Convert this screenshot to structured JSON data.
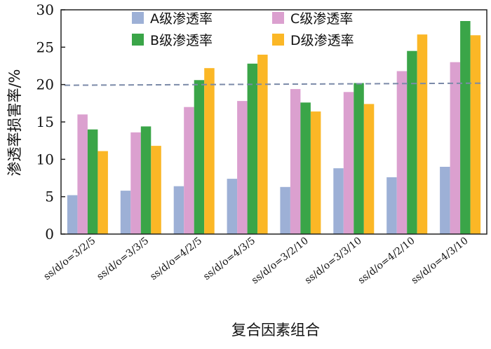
{
  "chart_data": {
    "type": "bar",
    "title": "",
    "xlabel": "复合因素组合",
    "ylabel": "渗透率损害率/%",
    "ylim": [
      0,
      30
    ],
    "yticks": [
      0,
      5,
      10,
      15,
      20,
      25,
      30
    ],
    "grid": false,
    "legend_position": "top",
    "reference_line": 20,
    "categories": [
      "ss/d/o=3/2/5",
      "ss/d/o=3/3/5",
      "ss/d/o=4/2/5",
      "ss/d/o=4/3/5",
      "ss/d/o=3/2/10",
      "ss/d/o=3/3/10",
      "ss/d/o=4/2/10",
      "ss/d/o=4/3/10"
    ],
    "series": [
      {
        "name": "A级渗透率",
        "color": "#9db0d6",
        "values": [
          5.2,
          5.8,
          6.4,
          7.4,
          6.3,
          8.8,
          7.6,
          9.0
        ]
      },
      {
        "name": "B级渗透率",
        "color": "#3aa548",
        "values": [
          14.0,
          14.4,
          20.6,
          22.8,
          17.6,
          20.2,
          24.5,
          28.5
        ]
      },
      {
        "name": "C级渗透率",
        "color": "#dba0cf",
        "values": [
          16.0,
          13.6,
          17.0,
          17.8,
          19.4,
          19.0,
          21.8,
          23.0
        ]
      },
      {
        "name": "D级渗透率",
        "color": "#fbb726",
        "values": [
          11.1,
          11.8,
          22.2,
          24.0,
          16.4,
          17.4,
          26.7,
          26.6
        ]
      }
    ],
    "bar_order": [
      0,
      2,
      1,
      3
    ]
  }
}
